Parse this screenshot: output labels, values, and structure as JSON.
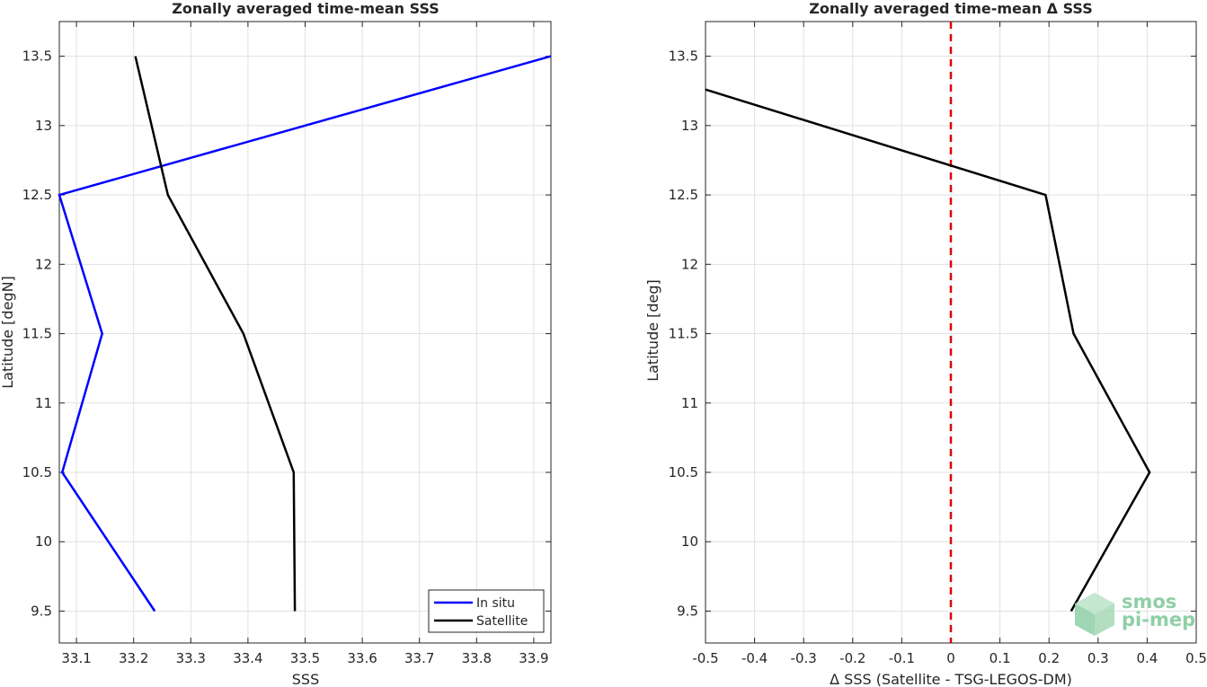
{
  "chart_data": [
    {
      "type": "line",
      "title": "Zonally averaged time-mean SSS",
      "xlabel": "SSS",
      "ylabel": "Latitude [degN]",
      "xlim": [
        33.07,
        33.93
      ],
      "ylim": [
        9.27,
        13.75
      ],
      "xticks": [
        33.1,
        33.2,
        33.3,
        33.4,
        33.5,
        33.6,
        33.7,
        33.8,
        33.9
      ],
      "xtick_labels": [
        "33.1",
        "33.2",
        "33.3",
        "33.4",
        "33.5",
        "33.6",
        "33.7",
        "33.8",
        "33.9"
      ],
      "yticks": [
        9.5,
        10,
        10.5,
        11,
        11.5,
        12,
        12.5,
        13,
        13.5
      ],
      "ytick_labels": [
        "9.5",
        "10",
        "10.5",
        "11",
        "11.5",
        "12",
        "12.5",
        "13",
        "13.5"
      ],
      "grid": true,
      "legend_position": "bottom-right",
      "series": [
        {
          "name": "In situ",
          "color": "#0000ff",
          "x": [
            33.237,
            33.075,
            33.145,
            33.07,
            33.93
          ],
          "y": [
            9.5,
            10.5,
            11.5,
            12.5,
            13.5
          ]
        },
        {
          "name": "Satellite",
          "color": "#000000",
          "x": [
            33.482,
            33.48,
            33.392,
            33.26,
            33.203
          ],
          "y": [
            9.5,
            10.5,
            11.5,
            12.5,
            13.5
          ]
        }
      ]
    },
    {
      "type": "line",
      "title": "Zonally averaged time-mean Δ SSS",
      "xlabel": "Δ SSS (Satellite - TSG-LEGOS-DM)",
      "ylabel": "Latitude [deg]",
      "xlim": [
        -0.5,
        0.5
      ],
      "ylim": [
        9.27,
        13.75
      ],
      "xticks": [
        -0.5,
        -0.4,
        -0.3,
        -0.2,
        -0.1,
        0,
        0.1,
        0.2,
        0.3,
        0.4,
        0.5
      ],
      "xtick_labels": [
        "-0.5",
        "-0.4",
        "-0.3",
        "-0.2",
        "-0.1",
        "0",
        "0.1",
        "0.2",
        "0.3",
        "0.4",
        "0.5"
      ],
      "yticks": [
        9.5,
        10,
        10.5,
        11,
        11.5,
        12,
        12.5,
        13,
        13.5
      ],
      "ytick_labels": [
        "9.5",
        "10",
        "10.5",
        "11",
        "11.5",
        "12",
        "12.5",
        "13",
        "13.5"
      ],
      "grid": true,
      "series": [
        {
          "color": "#000000",
          "x": [
            0.245,
            0.405,
            0.25,
            0.193,
            -0.5
          ],
          "y": [
            9.5,
            10.5,
            11.5,
            12.5,
            13.26
          ]
        }
      ],
      "reference_line": {
        "x": 0,
        "color": "#e00000",
        "style": "dashed"
      }
    }
  ],
  "logo": {
    "line1": "smos",
    "line2": "pi-mep",
    "color": "#8fcfa6"
  }
}
